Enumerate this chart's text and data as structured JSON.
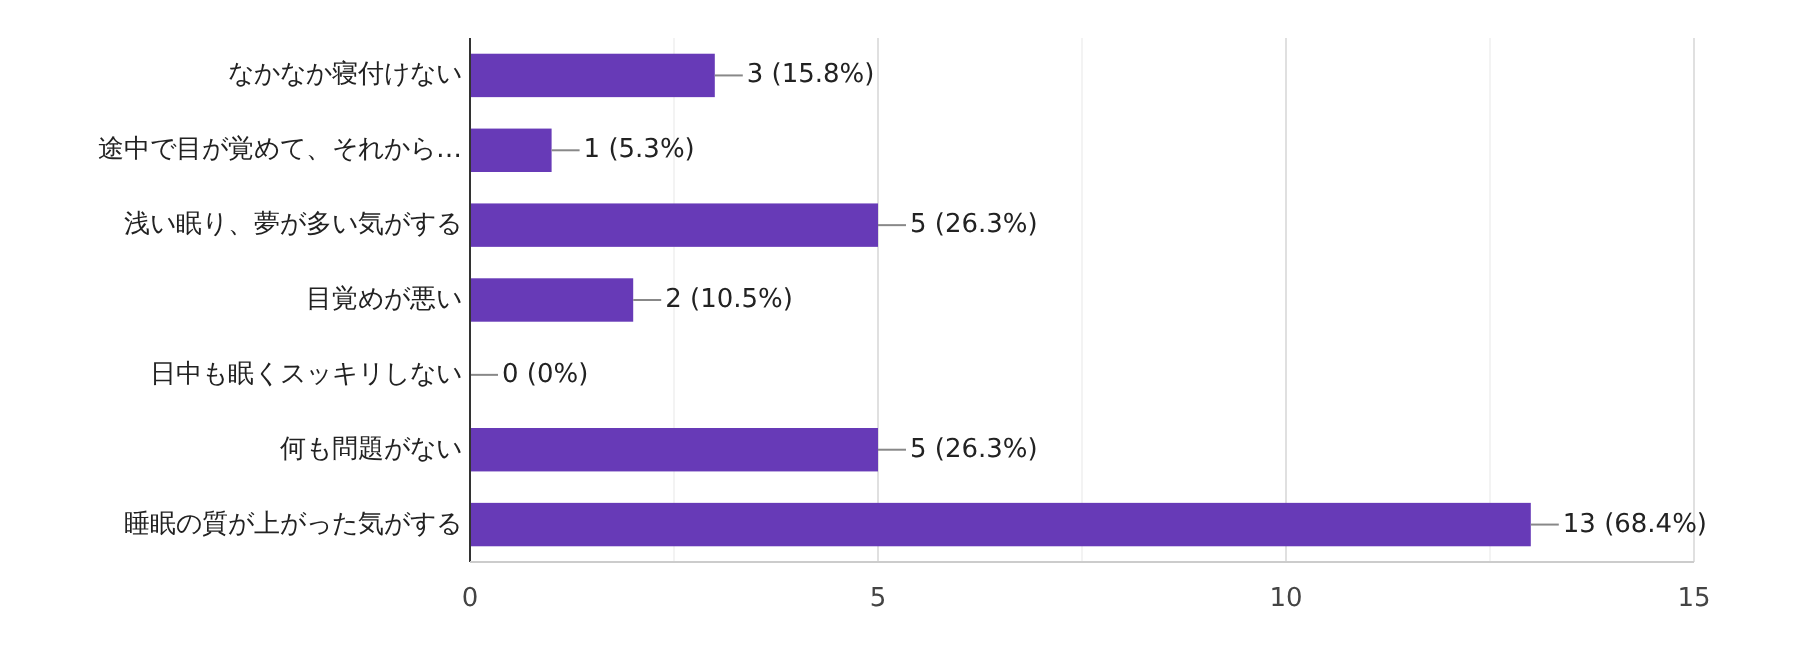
{
  "chart_data": {
    "type": "bar",
    "orientation": "horizontal",
    "categories": [
      "なかなか寝付けない",
      "途中で目が覚めて、それから…",
      "浅い眠り、夢が多い気がする",
      "目覚めが悪い",
      "日中も眠くスッキリしない",
      "何も問題がない",
      "睡眠の質が上がった気がする"
    ],
    "values": [
      3,
      1,
      5,
      2,
      0,
      5,
      13
    ],
    "value_labels": [
      "3 (15.8%)",
      "1 (5.3%)",
      "5 (26.3%)",
      "2 (10.5%)",
      "0 (0%)",
      "5 (26.3%)",
      "13 (68.4%)"
    ],
    "color": "#673ab7",
    "xlim": [
      0,
      15
    ],
    "xticks": [
      0,
      {
        "value": 2.5,
        "label": null
      },
      5,
      {
        "value": 7.5,
        "label": null
      },
      10,
      {
        "value": 12.5,
        "label": null
      },
      15
    ],
    "grid": "x"
  }
}
